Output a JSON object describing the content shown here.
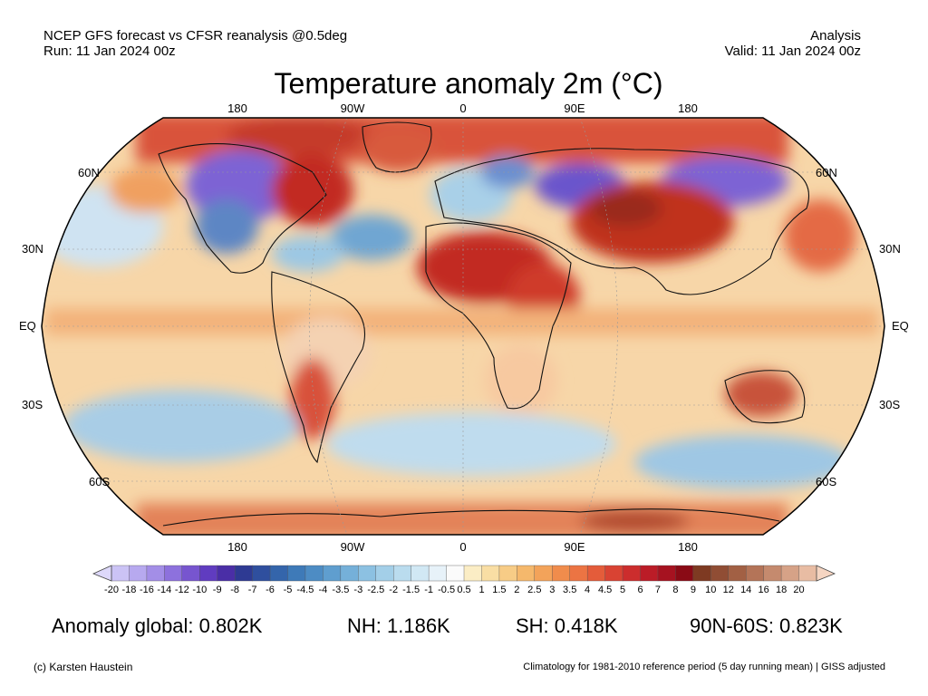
{
  "header": {
    "line1": "NCEP GFS forecast vs CFSR reanalysis @0.5deg",
    "line2": "Run: 11 Jan 2024 00z",
    "right1": "Analysis",
    "right2": "Valid: 11 Jan 2024 00z"
  },
  "title": "Temperature anomaly 2m (°C)",
  "map": {
    "projection": "Robinson",
    "lon_labels_top": [
      "180",
      "90W",
      "0",
      "90E",
      "180"
    ],
    "lon_labels_bottom": [
      "180",
      "90W",
      "0",
      "90E",
      "180"
    ],
    "lat_labels": [
      "60N",
      "30N",
      "EQ",
      "30S",
      "60S"
    ],
    "warm_regions": [
      {
        "region": "Arctic / Greenland",
        "color": "#b04a2e"
      },
      {
        "region": "North Africa / Sahara",
        "color": "#c22b22"
      },
      {
        "region": "Middle East / Central Asia",
        "color": "#b81f1f"
      },
      {
        "region": "Tibet / China",
        "color": "#c0301f"
      },
      {
        "region": "Australia",
        "color": "#a94a3a"
      },
      {
        "region": "Antarctic coast",
        "color": "#d45a3e"
      }
    ],
    "cold_regions": [
      {
        "region": "Western Canada / Alaska",
        "color": "#7d63d4"
      },
      {
        "region": "Scandinavia / Siberia",
        "color": "#6b55cc"
      }
    ]
  },
  "colorbar": {
    "labels": [
      "-20",
      "-18",
      "-16",
      "-14",
      "-12",
      "-10",
      "-9",
      "-8",
      "-7",
      "-6",
      "-5",
      "-4.5",
      "-4",
      "-3.5",
      "-3",
      "-2.5",
      "-2",
      "-1.5",
      "-1",
      "-0.5",
      "0.5",
      "1",
      "1.5",
      "2",
      "2.5",
      "3",
      "3.5",
      "4",
      "4.5",
      "5",
      "6",
      "7",
      "8",
      "9",
      "10",
      "12",
      "14",
      "16",
      "18",
      "20"
    ],
    "colors": [
      "#cbc3f5",
      "#b7a9ef",
      "#a38ee7",
      "#8d71dd",
      "#7755cf",
      "#603cc0",
      "#4a2ea6",
      "#2e3a93",
      "#2f4f9e",
      "#3465ab",
      "#3e7ab8",
      "#4d8cc4",
      "#5f9ecf",
      "#75b0d9",
      "#8cc1e2",
      "#a3cfe8",
      "#badcee",
      "#d1e8f4",
      "#e7f2f9",
      "#fbfbfb",
      "#fbedc5",
      "#f9dea4",
      "#f7cc86",
      "#f5b86c",
      "#f3a35a",
      "#f08c4c",
      "#ec7443",
      "#e45c3a",
      "#d94333",
      "#cc2d2d",
      "#bb1c27",
      "#a61220",
      "#8a0a15",
      "#7e3a22",
      "#904d34",
      "#a26044",
      "#b47458",
      "#c58a6e",
      "#d6a287",
      "#e8bca3"
    ],
    "under_color": "#ddd8fa",
    "over_color": "#f5d5c2"
  },
  "stats": {
    "global": "Anomaly global: 0.802K",
    "nh": "NH: 1.186K",
    "sh": "SH: 0.418K",
    "arctic": "90N-60S: 0.823K"
  },
  "footer": {
    "left": "(c) Karsten Haustein",
    "right": "Climatology for 1981-2010 reference period (5 day running mean) | GISS adjusted"
  }
}
